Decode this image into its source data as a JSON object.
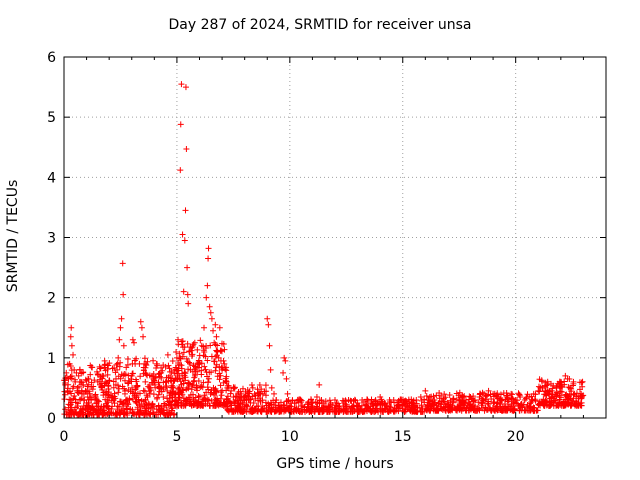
{
  "chart_data": {
    "type": "scatter",
    "title": "Day 287 of 2024, SRMTID for receiver unsa",
    "xlabel": "GPS time / hours",
    "ylabel": "SRMTID / TECUs",
    "xlim": [
      0,
      24.0
    ],
    "ylim": [
      0,
      6
    ],
    "xticks": [
      0,
      5,
      10,
      15,
      20
    ],
    "yticks": [
      0,
      1,
      2,
      3,
      4,
      5,
      6
    ],
    "grid": true,
    "marker": "+",
    "color": "#ff0000",
    "series": [
      {
        "name": "SRMTID",
        "points": [
          [
            0.05,
            0.55
          ],
          [
            0.1,
            0.75
          ],
          [
            0.15,
            0.45
          ],
          [
            0.2,
            0.65
          ],
          [
            0.25,
            0.9
          ],
          [
            0.3,
            1.35
          ],
          [
            0.32,
            1.5
          ],
          [
            0.35,
            1.2
          ],
          [
            0.4,
            1.05
          ],
          [
            0.45,
            0.8
          ],
          [
            0.5,
            0.6
          ],
          [
            0.55,
            0.75
          ],
          [
            0.6,
            0.5
          ],
          [
            0.65,
            0.7
          ],
          [
            0.7,
            0.8
          ],
          [
            0.75,
            0.6
          ],
          [
            0.8,
            0.4
          ],
          [
            0.85,
            0.55
          ],
          [
            0.9,
            0.3
          ],
          [
            0.95,
            0.45
          ],
          [
            1.0,
            0.25
          ],
          [
            1.05,
            0.35
          ],
          [
            1.1,
            0.2
          ],
          [
            1.2,
            0.3
          ],
          [
            1.3,
            0.15
          ],
          [
            1.4,
            0.35
          ],
          [
            1.5,
            0.2
          ],
          [
            1.6,
            0.55
          ],
          [
            1.7,
            0.7
          ],
          [
            1.8,
            0.95
          ],
          [
            1.85,
            0.4
          ],
          [
            1.9,
            0.2
          ],
          [
            2.0,
            0.05
          ],
          [
            2.1,
            0.15
          ],
          [
            2.2,
            0.3
          ],
          [
            2.3,
            0.55
          ],
          [
            2.35,
            0.8
          ],
          [
            2.4,
            1.0
          ],
          [
            2.45,
            1.3
          ],
          [
            2.5,
            1.5
          ],
          [
            2.55,
            1.65
          ],
          [
            2.6,
            2.57
          ],
          [
            2.62,
            2.05
          ],
          [
            2.65,
            1.2
          ],
          [
            2.7,
            0.4
          ],
          [
            2.75,
            0.2
          ],
          [
            2.8,
            0.1
          ],
          [
            2.9,
            0.3
          ],
          [
            3.0,
            0.7
          ],
          [
            3.05,
            1.3
          ],
          [
            3.1,
            1.25
          ],
          [
            3.15,
            0.9
          ],
          [
            3.2,
            0.5
          ],
          [
            3.3,
            0.3
          ],
          [
            3.4,
            1.6
          ],
          [
            3.45,
            1.5
          ],
          [
            3.5,
            1.35
          ],
          [
            3.55,
            0.9
          ],
          [
            3.6,
            0.6
          ],
          [
            3.7,
            0.35
          ],
          [
            3.8,
            0.5
          ],
          [
            3.9,
            0.7
          ],
          [
            4.0,
            0.6
          ],
          [
            4.1,
            0.9
          ],
          [
            4.2,
            0.5
          ],
          [
            4.3,
            0.75
          ],
          [
            4.4,
            0.35
          ],
          [
            4.5,
            0.85
          ],
          [
            4.6,
            1.05
          ],
          [
            4.7,
            0.7
          ],
          [
            4.8,
            0.5
          ],
          [
            4.9,
            0.4
          ],
          [
            5.0,
            1.0
          ],
          [
            5.05,
            1.3
          ],
          [
            5.1,
            0.7
          ],
          [
            5.15,
            4.12
          ],
          [
            5.17,
            4.88
          ],
          [
            5.2,
            5.55
          ],
          [
            5.25,
            3.05
          ],
          [
            5.3,
            2.1
          ],
          [
            5.35,
            2.95
          ],
          [
            5.38,
            3.45
          ],
          [
            5.4,
            5.5
          ],
          [
            5.42,
            4.47
          ],
          [
            5.45,
            2.5
          ],
          [
            5.48,
            2.05
          ],
          [
            5.5,
            1.9
          ],
          [
            5.55,
            1.1
          ],
          [
            5.6,
            0.8
          ],
          [
            5.7,
            0.55
          ],
          [
            5.8,
            0.7
          ],
          [
            5.9,
            0.5
          ],
          [
            6.0,
            0.9
          ],
          [
            6.1,
            1.2
          ],
          [
            6.2,
            1.5
          ],
          [
            6.3,
            2.0
          ],
          [
            6.35,
            2.2
          ],
          [
            6.38,
            2.65
          ],
          [
            6.4,
            2.82
          ],
          [
            6.45,
            1.85
          ],
          [
            6.5,
            1.75
          ],
          [
            6.55,
            1.65
          ],
          [
            6.6,
            1.45
          ],
          [
            6.65,
            1.25
          ],
          [
            6.7,
            1.55
          ],
          [
            6.75,
            1.35
          ],
          [
            6.8,
            1.1
          ],
          [
            6.85,
            1.0
          ],
          [
            6.9,
            1.5
          ],
          [
            6.95,
            0.95
          ],
          [
            7.0,
            0.8
          ],
          [
            7.1,
            0.9
          ],
          [
            7.2,
            0.6
          ],
          [
            7.3,
            0.5
          ],
          [
            7.4,
            0.45
          ],
          [
            7.5,
            0.35
          ],
          [
            7.6,
            0.3
          ],
          [
            7.7,
            0.4
          ],
          [
            7.8,
            0.3
          ],
          [
            7.9,
            0.25
          ],
          [
            8.0,
            0.35
          ],
          [
            8.2,
            0.3
          ],
          [
            8.4,
            0.25
          ],
          [
            8.6,
            0.2
          ],
          [
            8.8,
            0.15
          ],
          [
            8.95,
            0.1
          ],
          [
            9.0,
            1.65
          ],
          [
            9.05,
            1.55
          ],
          [
            9.1,
            1.2
          ],
          [
            9.15,
            0.8
          ],
          [
            9.2,
            0.5
          ],
          [
            9.3,
            0.4
          ],
          [
            9.4,
            0.3
          ],
          [
            9.5,
            0.2
          ],
          [
            9.7,
            0.75
          ],
          [
            9.75,
            1.0
          ],
          [
            9.8,
            0.95
          ],
          [
            9.85,
            0.65
          ],
          [
            9.9,
            0.4
          ],
          [
            10.0,
            0.2
          ],
          [
            10.2,
            0.15
          ],
          [
            10.5,
            0.2
          ],
          [
            10.8,
            0.25
          ],
          [
            11.0,
            0.2
          ],
          [
            11.2,
            0.35
          ],
          [
            11.3,
            0.55
          ],
          [
            11.4,
            0.3
          ],
          [
            11.6,
            0.2
          ],
          [
            11.8,
            0.25
          ],
          [
            12.0,
            0.3
          ],
          [
            12.2,
            0.2
          ],
          [
            12.4,
            0.25
          ],
          [
            12.6,
            0.3
          ],
          [
            12.8,
            0.2
          ],
          [
            13.0,
            0.25
          ],
          [
            13.2,
            0.3
          ],
          [
            13.4,
            0.2
          ],
          [
            13.6,
            0.25
          ],
          [
            13.8,
            0.3
          ],
          [
            14.0,
            0.35
          ],
          [
            14.2,
            0.25
          ],
          [
            14.4,
            0.2
          ],
          [
            14.6,
            0.3
          ],
          [
            14.8,
            0.25
          ],
          [
            15.0,
            0.2
          ],
          [
            15.2,
            0.15
          ],
          [
            15.4,
            0.25
          ],
          [
            15.6,
            0.3
          ],
          [
            15.8,
            0.35
          ],
          [
            16.0,
            0.45
          ],
          [
            16.2,
            0.35
          ],
          [
            16.4,
            0.3
          ],
          [
            16.6,
            0.25
          ],
          [
            16.8,
            0.3
          ],
          [
            17.0,
            0.25
          ],
          [
            17.2,
            0.2
          ],
          [
            17.4,
            0.3
          ],
          [
            17.6,
            0.25
          ],
          [
            17.8,
            0.3
          ],
          [
            18.0,
            0.35
          ],
          [
            18.2,
            0.3
          ],
          [
            18.4,
            0.35
          ],
          [
            18.6,
            0.4
          ],
          [
            18.8,
            0.45
          ],
          [
            19.0,
            0.4
          ],
          [
            19.2,
            0.35
          ],
          [
            19.4,
            0.3
          ],
          [
            19.6,
            0.35
          ],
          [
            19.8,
            0.4
          ],
          [
            20.0,
            0.3
          ],
          [
            20.2,
            0.35
          ],
          [
            20.4,
            0.3
          ],
          [
            20.6,
            0.35
          ],
          [
            20.8,
            0.4
          ],
          [
            21.0,
            0.45
          ],
          [
            21.2,
            0.5
          ],
          [
            21.4,
            0.55
          ],
          [
            21.6,
            0.45
          ],
          [
            21.8,
            0.5
          ],
          [
            22.0,
            0.6
          ],
          [
            22.2,
            0.7
          ],
          [
            22.3,
            0.65
          ],
          [
            22.4,
            0.5
          ],
          [
            22.6,
            0.4
          ],
          [
            22.8,
            0.35
          ],
          [
            22.9,
            0.4
          ]
        ],
        "noise_bands": [
          {
            "x_start": 0.0,
            "x_end": 2.0,
            "y_min": 0.05,
            "y_max": 0.9,
            "count": 240
          },
          {
            "x_start": 2.0,
            "x_end": 4.9,
            "y_min": 0.05,
            "y_max": 1.0,
            "count": 320
          },
          {
            "x_start": 4.9,
            "x_end": 7.2,
            "y_min": 0.2,
            "y_max": 1.3,
            "count": 300
          },
          {
            "x_start": 7.2,
            "x_end": 9.0,
            "y_min": 0.1,
            "y_max": 0.55,
            "count": 160
          },
          {
            "x_start": 9.0,
            "x_end": 16.0,
            "y_min": 0.1,
            "y_max": 0.32,
            "count": 420
          },
          {
            "x_start": 16.0,
            "x_end": 21.0,
            "y_min": 0.12,
            "y_max": 0.42,
            "count": 340
          },
          {
            "x_start": 21.0,
            "x_end": 23.0,
            "y_min": 0.2,
            "y_max": 0.65,
            "count": 180
          }
        ]
      }
    ]
  }
}
